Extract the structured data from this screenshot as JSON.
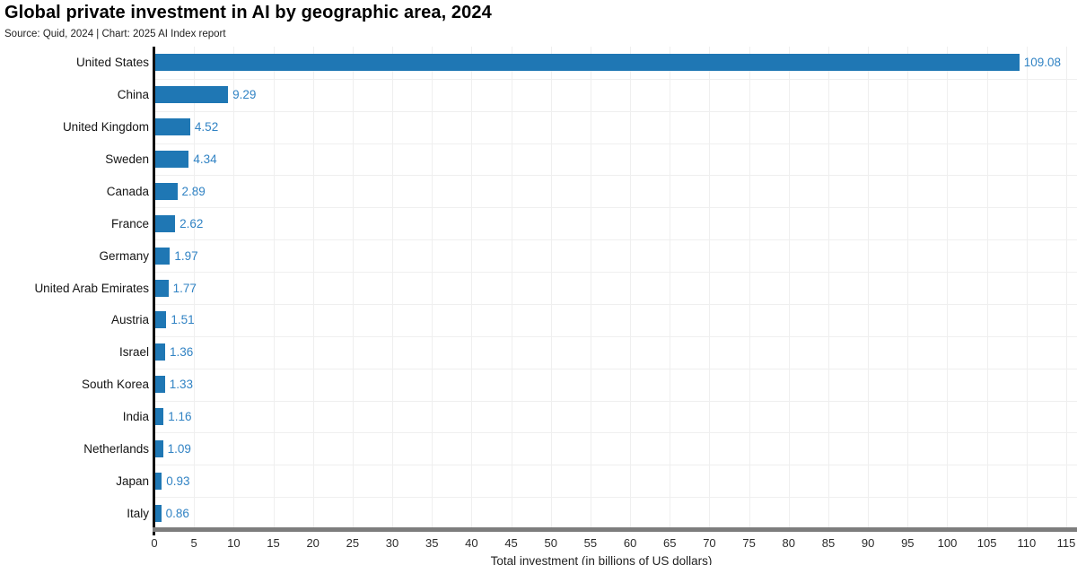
{
  "header": {
    "title": "Global private investment in AI by geographic area, 2024",
    "subtitle": "Source: Quid, 2024 | Chart: 2025 AI Index report"
  },
  "chart_data": {
    "type": "bar",
    "orientation": "horizontal",
    "title": "Global private investment in AI by geographic area, 2024",
    "source_line": "Source: Quid, 2024 | Chart: 2025 AI Index report",
    "categories": [
      "United States",
      "China",
      "United Kingdom",
      "Sweden",
      "Canada",
      "France",
      "Germany",
      "United Arab Emirates",
      "Austria",
      "Israel",
      "South Korea",
      "India",
      "Netherlands",
      "Japan",
      "Italy"
    ],
    "values": [
      109.08,
      9.29,
      4.52,
      4.34,
      2.89,
      2.62,
      1.97,
      1.77,
      1.51,
      1.36,
      1.33,
      1.16,
      1.09,
      0.93,
      0.86
    ],
    "value_labels": [
      "109.08",
      "9.29",
      "4.52",
      "4.34",
      "2.89",
      "2.62",
      "1.97",
      "1.77",
      "1.51",
      "1.36",
      "1.33",
      "1.16",
      "1.09",
      "0.93",
      "0.86"
    ],
    "xlabel": "Total investment (in billions of US dollars)",
    "xlim": [
      0,
      115
    ],
    "xticks": [
      0,
      5,
      10,
      15,
      20,
      25,
      30,
      35,
      40,
      45,
      50,
      55,
      60,
      65,
      70,
      75,
      80,
      85,
      90,
      95,
      100,
      105,
      110,
      115
    ],
    "grid": true,
    "legend": "none",
    "colors": {
      "bar": "#1f77b4",
      "value_label": "#3183c4",
      "gridline": "#efefef",
      "y_axis": "#111111",
      "x_axis": "#7d7d7d"
    }
  }
}
